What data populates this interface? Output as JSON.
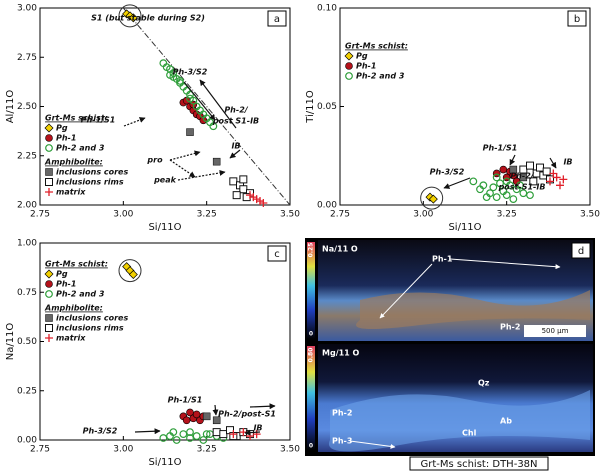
{
  "chart_data": [
    {
      "type": "scatter",
      "panel_label": "a",
      "xlabel": "Si/11O",
      "ylabel": "Al/11O",
      "xlim": [
        2.75,
        3.5
      ],
      "xticks": [
        2.75,
        {
          "value": 3,
          "label": "3.00"
        },
        3.25,
        {
          "value": 3.5,
          "label": "3.50"
        }
      ],
      "ylim": [
        2,
        3
      ],
      "yticks": [
        {
          "value": 2,
          "label": "2.00"
        },
        2.25,
        {
          "value": 2.5,
          "label": "2.50"
        },
        2.75,
        {
          "value": 3,
          "label": "3.00"
        }
      ],
      "reference_line": {
        "x": [
          3,
          3.5
        ],
        "y": [
          3,
          2
        ]
      },
      "annotations": [
        "S1 (but stable during S2)",
        "Ph-3/S2",
        "Ph-2/",
        "post S1-IB",
        "Ph-1/S1",
        "pro",
        "peak",
        "IB"
      ],
      "series": [
        {
          "name": "Pg",
          "group": "Grt-Ms schist:",
          "marker": "diamond",
          "color": "#f2d000",
          "x": [
            3.01,
            3.02,
            3.03
          ],
          "y": [
            2.97,
            2.96,
            2.95
          ]
        },
        {
          "name": "Ph-1",
          "group": "Grt-Ms schist:",
          "marker": "circle",
          "color": "#b5121b",
          "x": [
            3.18,
            3.19,
            3.2,
            3.21,
            3.21,
            3.22,
            3.23,
            3.24
          ],
          "y": [
            2.52,
            2.53,
            2.5,
            2.48,
            2.51,
            2.46,
            2.45,
            2.43
          ]
        },
        {
          "name": "Ph-2 and 3",
          "group": "Grt-Ms schist:",
          "marker": "circle-open",
          "color": "#2e9e3a",
          "x": [
            3.12,
            3.13,
            3.14,
            3.15,
            3.15,
            3.16,
            3.17,
            3.18,
            3.19,
            3.2,
            3.2,
            3.21,
            3.22,
            3.23,
            3.24,
            3.25,
            3.26,
            3.27,
            3.14,
            3.17
          ],
          "y": [
            2.72,
            2.7,
            2.69,
            2.67,
            2.65,
            2.64,
            2.62,
            2.6,
            2.58,
            2.56,
            2.54,
            2.53,
            2.5,
            2.48,
            2.46,
            2.44,
            2.42,
            2.4,
            2.66,
            2.63
          ]
        },
        {
          "name": "inclusions cores",
          "group": "Amphibolite:",
          "marker": "square",
          "color": "#666666",
          "x": [
            3.2,
            3.28
          ],
          "y": [
            2.37,
            2.22
          ]
        },
        {
          "name": "inclusions rims",
          "group": "Amphibolite:",
          "marker": "square-open",
          "color": "#111111",
          "x": [
            3.33,
            3.35,
            3.36,
            3.38,
            3.34,
            3.37,
            3.36
          ],
          "y": [
            2.12,
            2.1,
            2.08,
            2.06,
            2.05,
            2.04,
            2.13
          ]
        },
        {
          "name": "matrix",
          "group": "Amphibolite:",
          "marker": "plus",
          "color": "#e0202a",
          "x": [
            3.38,
            3.39,
            3.4,
            3.41,
            3.42
          ],
          "y": [
            2.05,
            2.04,
            2.03,
            2.02,
            2.01
          ]
        }
      ]
    },
    {
      "type": "scatter",
      "panel_label": "b",
      "xlabel": "Si/11O",
      "ylabel": "Ti/11O",
      "xlim": [
        2.75,
        3.5
      ],
      "xticks": [
        2.75,
        {
          "value": 3,
          "label": "3.00"
        },
        3.25,
        {
          "value": 3.5,
          "label": "3.50"
        }
      ],
      "ylim": [
        0,
        0.1
      ],
      "yticks": [
        {
          "value": 0,
          "label": "0.00"
        },
        0.05,
        {
          "value": 0.1,
          "label": "0.10"
        }
      ],
      "annotations": [
        "Ph-1/S1",
        "Ph-3/S2",
        "Ph-2/",
        "post-S1-IB",
        "IB"
      ],
      "series": [
        {
          "name": "Pg",
          "group": "Grt-Ms schist:",
          "marker": "diamond",
          "color": "#f2d000",
          "x": [
            3.02,
            3.03
          ],
          "y": [
            0.004,
            0.003
          ]
        },
        {
          "name": "Ph-1",
          "group": "Grt-Ms schist:",
          "marker": "circle",
          "color": "#b5121b",
          "x": [
            3.22,
            3.24,
            3.25,
            3.26,
            3.27,
            3.28
          ],
          "y": [
            0.016,
            0.018,
            0.014,
            0.017,
            0.015,
            0.012
          ]
        },
        {
          "name": "Ph-2 and 3",
          "group": "Grt-Ms schist:",
          "marker": "circle-open",
          "color": "#2e9e3a",
          "x": [
            3.15,
            3.17,
            3.18,
            3.2,
            3.21,
            3.22,
            3.23,
            3.24,
            3.25,
            3.26,
            3.27,
            3.28,
            3.3,
            3.19,
            3.22,
            3.25,
            3.29,
            3.32
          ],
          "y": [
            0.012,
            0.008,
            0.01,
            0.006,
            0.009,
            0.004,
            0.011,
            0.007,
            0.005,
            0.01,
            0.003,
            0.008,
            0.006,
            0.004,
            0.014,
            0.012,
            0.01,
            0.005
          ]
        },
        {
          "name": "inclusions cores",
          "in_legend": false,
          "marker": "square",
          "color": "#666666",
          "x": [
            3.27,
            3.3
          ],
          "y": [
            0.018,
            0.014
          ]
        },
        {
          "name": "inclusions rims",
          "in_legend": false,
          "marker": "square-open",
          "color": "#111111",
          "x": [
            3.3,
            3.32,
            3.34,
            3.35,
            3.36,
            3.38,
            3.33,
            3.37
          ],
          "y": [
            0.018,
            0.02,
            0.016,
            0.019,
            0.015,
            0.013,
            0.012,
            0.017
          ]
        },
        {
          "name": "matrix",
          "in_legend": false,
          "marker": "plus",
          "color": "#e0202a",
          "x": [
            3.38,
            3.39,
            3.4,
            3.41,
            3.42
          ],
          "y": [
            0.012,
            0.016,
            0.014,
            0.01,
            0.013
          ]
        }
      ]
    },
    {
      "type": "scatter",
      "panel_label": "c",
      "xlabel": "Si/11O",
      "ylabel": "Na/11O",
      "xlim": [
        2.75,
        3.5
      ],
      "xticks": [
        2.75,
        {
          "value": 3,
          "label": "3.00"
        },
        3.25,
        {
          "value": 3.5,
          "label": "3.50"
        }
      ],
      "ylim": [
        0,
        1
      ],
      "yticks": [
        {
          "value": 0,
          "label": "0.00"
        },
        0.25,
        {
          "value": 0.5,
          "label": "0.50"
        },
        0.75,
        {
          "value": 1,
          "label": "1.00"
        }
      ],
      "annotations": [
        "Ph-1/S1",
        "Ph-2/post-S1",
        "IB",
        "Ph-3/S2"
      ],
      "series": [
        {
          "name": "Pg",
          "group": "Grt-Ms schist:",
          "marker": "diamond",
          "color": "#f2d000",
          "x": [
            3.01,
            3.02,
            3.03
          ],
          "y": [
            0.88,
            0.86,
            0.84
          ]
        },
        {
          "name": "Ph-1",
          "group": "Grt-Ms schist:",
          "marker": "circle",
          "color": "#b5121b",
          "x": [
            3.18,
            3.19,
            3.2,
            3.21,
            3.22,
            3.23,
            3.24
          ],
          "y": [
            0.12,
            0.1,
            0.14,
            0.11,
            0.13,
            0.1,
            0.12
          ]
        },
        {
          "name": "Ph-2 and 3",
          "group": "Grt-Ms schist:",
          "marker": "circle-open",
          "color": "#2e9e3a",
          "x": [
            3.12,
            3.14,
            3.16,
            3.18,
            3.2,
            3.22,
            3.24,
            3.26,
            3.28,
            3.3,
            3.15,
            3.2,
            3.25
          ],
          "y": [
            0.01,
            0.02,
            0,
            0.03,
            0.01,
            0.02,
            0,
            0.03,
            0.02,
            0.01,
            0.04,
            0.04,
            0.03
          ]
        },
        {
          "name": "inclusions cores",
          "group": "Amphibolite:",
          "marker": "square",
          "color": "#666666",
          "x": [
            3.25,
            3.28
          ],
          "y": [
            0.12,
            0.1
          ]
        },
        {
          "name": "inclusions rims",
          "group": "Amphibolite:",
          "marker": "square-open",
          "color": "#111111",
          "x": [
            3.28,
            3.3,
            3.32,
            3.34,
            3.36,
            3.38,
            3.33
          ],
          "y": [
            0.04,
            0.03,
            0.05,
            0.02,
            0.04,
            0.03,
            0.02
          ]
        },
        {
          "name": "matrix",
          "group": "Amphibolite:",
          "marker": "plus",
          "color": "#e0202a",
          "x": [
            3.33,
            3.36,
            3.38,
            3.4
          ],
          "y": [
            0.03,
            0.04,
            0.02,
            0.03
          ]
        }
      ]
    }
  ],
  "image_panel": {
    "panel_label": "d",
    "top_map": {
      "element": "Na/11 O",
      "scale_max": "0.25",
      "scale_min": "0",
      "labels": [
        "Ph-1",
        "Ph-2"
      ],
      "scale_bar": "500 µm"
    },
    "bottom_map": {
      "element": "Mg/11 O",
      "scale_max": "0.80",
      "scale_min": "0",
      "labels": [
        "Qz",
        "Ph-2",
        "Ab",
        "Chl",
        "Ph-3"
      ]
    },
    "caption": "Grt-Ms schist: DTH-38N"
  }
}
